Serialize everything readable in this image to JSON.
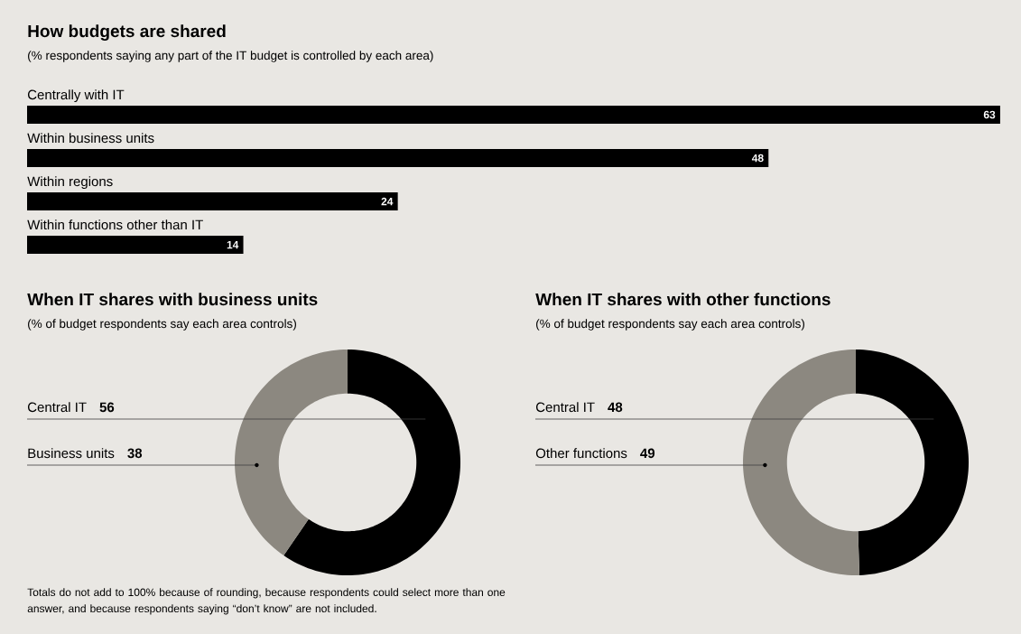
{
  "chart_data": [
    {
      "type": "bar",
      "orientation": "horizontal",
      "title": "How budgets are shared",
      "subtitle": "(% respondents saying any part of the IT budget is controlled by each area)",
      "categories": [
        "Centrally with IT",
        "Within business units",
        "Within regions",
        "Within functions other than IT"
      ],
      "values": [
        63,
        48,
        24,
        14
      ],
      "color": "#000000",
      "data_labels": true
    },
    {
      "type": "donut",
      "title": "When IT shares with business units",
      "subtitle": "(% of budget respondents say each area controls)",
      "categories": [
        "Central IT",
        "Business units"
      ],
      "values": [
        56,
        38
      ],
      "colors": [
        "#000000",
        "#8c8880"
      ],
      "data_labels": true,
      "annotations": [
        "Totals do not add to 100% because of rounding, because respondents could select more than one answer, and because respondents saying “don’t know” are not included."
      ]
    },
    {
      "type": "donut",
      "title": "When IT shares with other functions",
      "subtitle": "(% of budget respondents say each area controls)",
      "categories": [
        "Central IT",
        "Other functions"
      ],
      "values": [
        48,
        49
      ],
      "colors": [
        "#000000",
        "#8c8880"
      ],
      "data_labels": true
    }
  ]
}
